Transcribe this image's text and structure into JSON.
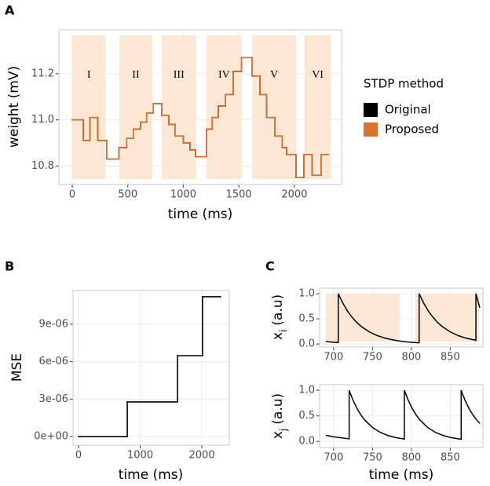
{
  "chart_data": [
    {
      "panel": "A",
      "type": "line",
      "step": true,
      "xlabel": "time (ms)",
      "ylabel": "weight (mV)",
      "xlim": [
        -120,
        2425
      ],
      "ylim": [
        10.72,
        11.39
      ],
      "xticks": [
        0,
        500,
        1000,
        1500,
        2000
      ],
      "yticks": [
        10.8,
        {
          "value": 11,
          "label": "11.0"
        },
        11.2
      ],
      "grid": true,
      "regions": [
        {
          "label": "I",
          "start": 0,
          "end": 300
        },
        {
          "label": "II",
          "start": 425,
          "end": 720
        },
        {
          "label": "III",
          "start": 805,
          "end": 1115
        },
        {
          "label": "IV",
          "start": 1210,
          "end": 1525
        },
        {
          "label": "V",
          "start": 1620,
          "end": 2015
        },
        {
          "label": "VI",
          "start": 2090,
          "end": 2330
        }
      ],
      "region_color": "#fbe7d3",
      "legend": {
        "title": "STDP method",
        "position": "right"
      },
      "x": [
        0,
        100,
        160,
        230,
        310,
        420,
        490,
        550,
        615,
        670,
        730,
        805,
        870,
        925,
        1000,
        1060,
        1110,
        1210,
        1260,
        1315,
        1380,
        1450,
        1525,
        1620,
        1690,
        1750,
        1825,
        1890,
        1930,
        2015,
        2085,
        2160,
        2240,
        2305
      ],
      "series": [
        {
          "name": "Original",
          "color": "#000000",
          "values": [
            11.0,
            10.91,
            11.01,
            10.91,
            10.83,
            10.88,
            10.92,
            10.96,
            10.99,
            11.03,
            11.07,
            11.02,
            10.98,
            10.93,
            10.9,
            10.87,
            10.84,
            10.96,
            11.01,
            11.06,
            11.11,
            11.21,
            11.27,
            11.19,
            11.11,
            11.01,
            10.93,
            10.88,
            10.85,
            10.75,
            10.85,
            10.76,
            10.85,
            10.85
          ]
        },
        {
          "name": "Proposed",
          "color": "#d9722f",
          "values": [
            11.0,
            10.91,
            11.01,
            10.91,
            10.83,
            10.88,
            10.92,
            10.96,
            10.99,
            11.03,
            11.07,
            11.02,
            10.98,
            10.93,
            10.9,
            10.87,
            10.84,
            10.96,
            11.01,
            11.06,
            11.11,
            11.21,
            11.27,
            11.19,
            11.11,
            11.01,
            10.93,
            10.88,
            10.85,
            10.75,
            10.85,
            10.76,
            10.85,
            10.85
          ]
        }
      ]
    },
    {
      "panel": "B",
      "type": "line",
      "step": true,
      "xlabel": "time (ms)",
      "ylabel": "MSE",
      "xlim": [
        -90,
        2445
      ],
      "ylim": [
        -6.9e-07,
        1.17e-05
      ],
      "xticks": [
        0,
        1000,
        2000
      ],
      "yticks": [
        {
          "value": 0,
          "label": "0e+00"
        },
        {
          "value": 3e-06,
          "label": "3e-06"
        },
        {
          "value": 6e-06,
          "label": "6e-06"
        },
        {
          "value": 9e-06,
          "label": "9e-06"
        }
      ],
      "grid": true,
      "color": "#000000",
      "x": [
        0,
        790,
        1605,
        2010,
        2300
      ],
      "values": [
        0,
        2.77e-06,
        6.48e-06,
        1.12e-05,
        1.12e-05
      ]
    },
    {
      "panel": "C",
      "type": "line",
      "ylabel": {
        "main": "x",
        "sub": "i",
        "unit": "(a.u)"
      },
      "xlim": [
        682,
        892
      ],
      "ylim": [
        -0.06,
        1.11
      ],
      "xticks": [
        700,
        750,
        800,
        850
      ],
      "yticks": [
        {
          "value": 0,
          "label": "0.0"
        },
        0.5,
        {
          "value": 1,
          "label": "1.0"
        }
      ],
      "grid": true,
      "regions": [
        {
          "start": 690,
          "end": 785
        },
        {
          "start": 805,
          "end": 887
        }
      ],
      "region_color": "#fbe7d3",
      "color": "#000000",
      "x": [
        690,
        695,
        700,
        706,
        706,
        712,
        718,
        724,
        730,
        736,
        746,
        756,
        766,
        776,
        786,
        796,
        806,
        810,
        810,
        816,
        822,
        828,
        834,
        840,
        850,
        860,
        870,
        883,
        883,
        888
      ],
      "values": [
        0.05,
        0.042,
        0.035,
        0.029,
        1.0,
        0.807,
        0.651,
        0.526,
        0.424,
        0.343,
        0.24,
        0.168,
        0.117,
        0.082,
        0.057,
        0.04,
        0.028,
        0.024,
        1.0,
        0.807,
        0.651,
        0.526,
        0.424,
        0.343,
        0.24,
        0.168,
        0.117,
        0.074,
        1.0,
        0.72
      ]
    },
    {
      "type": "line",
      "xlabel": "time (ms)",
      "ylabel": {
        "main": "x",
        "sub": "j",
        "unit": "(a.u)"
      },
      "xlim": [
        682,
        892
      ],
      "ylim": [
        -0.12,
        1.11
      ],
      "xticks": [
        700,
        750,
        800,
        850
      ],
      "yticks": [
        {
          "value": 0,
          "label": "0.0"
        },
        0.5,
        {
          "value": 1,
          "label": "1.0"
        }
      ],
      "grid": true,
      "color": "#000000",
      "x": [
        690,
        700,
        710,
        720,
        720,
        725,
        730,
        735,
        740,
        750,
        760,
        770,
        780,
        791,
        791,
        796,
        801,
        806,
        811,
        821,
        831,
        841,
        851,
        864,
        864,
        869,
        874,
        879,
        884,
        888
      ],
      "values": [
        0.12,
        0.09,
        0.07,
        0.05,
        1.0,
        0.805,
        0.647,
        0.521,
        0.419,
        0.271,
        0.176,
        0.114,
        0.074,
        0.046,
        1.0,
        0.805,
        0.647,
        0.521,
        0.419,
        0.271,
        0.176,
        0.114,
        0.074,
        0.042,
        1.0,
        0.805,
        0.647,
        0.521,
        0.419,
        0.352
      ]
    }
  ]
}
